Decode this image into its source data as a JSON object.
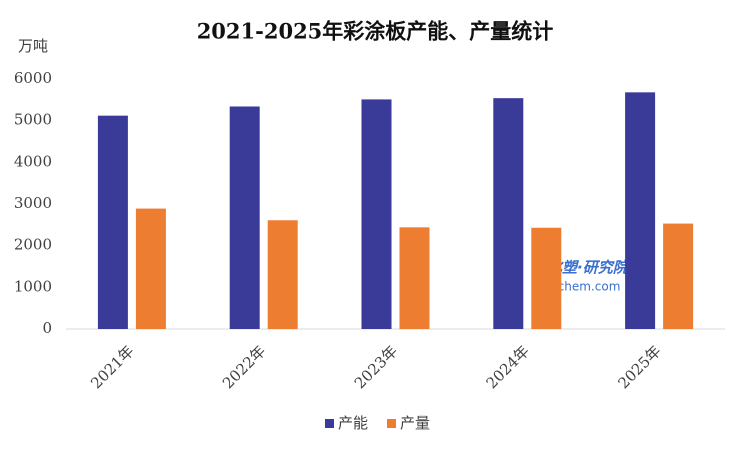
{
  "chart_data": {
    "type": "bar",
    "title": "2021-2025年彩涂板产能、产量统计",
    "y_label": "万吨",
    "categories": [
      "2021年",
      "2022年",
      "2023年",
      "2024年",
      "2025年"
    ],
    "series": [
      {
        "name": "产能",
        "color": "#3a3a98",
        "values": [
          5120,
          5340,
          5510,
          5540,
          5680
        ]
      },
      {
        "name": "产量",
        "color": "#ed7d31",
        "values": [
          2890,
          2610,
          2440,
          2430,
          2530
        ]
      }
    ],
    "ylim": [
      0,
      6000
    ],
    "yticks": [
      0,
      1000,
      2000,
      3000,
      4000,
      5000,
      6000
    ],
    "grid": false,
    "legend": "bottom",
    "watermark": [
      "买化塑·研究院",
      "ibuychem.com"
    ]
  }
}
